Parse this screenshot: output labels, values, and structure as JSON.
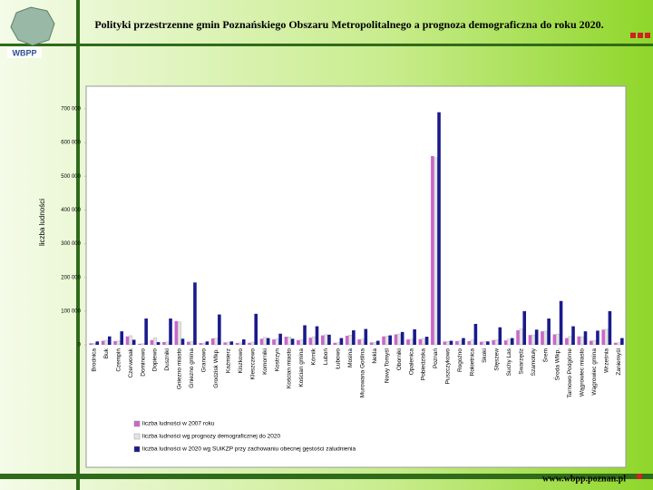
{
  "header": {
    "title": "Polityki przestrzenne gmin Poznańskiego Obszaru Metropolitalnego a prognoza demograficzna do roku 2020.",
    "logo": "WBPP"
  },
  "footer": "www.wbpp.poznan.pl",
  "chart_data": {
    "type": "bar",
    "y_label": "liczba ludności",
    "categories": [
      "Brodnica",
      "Buk",
      "Czempiń",
      "Czerwonak",
      "Dominowo",
      "Dopiewo",
      "Duszniki",
      "Gniezno miasto",
      "Gniezno gmina",
      "Granowo",
      "Grodzisk Wlkp.",
      "Kaźmierz",
      "Kiszkowo",
      "Kleszczewo",
      "Komorniki",
      "Kostrzyn",
      "Kościan miasto",
      "Kościan gmina",
      "Kórnik",
      "Luboń",
      "Łubowo",
      "Mosina",
      "Murowana Goślina",
      "Nekla",
      "Nowy Tomyśl",
      "Oborniki",
      "Opalenica",
      "Pobiedziska",
      "Poznań",
      "Puszczykowo",
      "Rogoźno",
      "Rokietnica",
      "Skoki",
      "Stęszew",
      "Suchy Las",
      "Swarzędz",
      "Szamotuły",
      "Śrem",
      "Środa Wlkp.",
      "Tarnowo Podgórne",
      "Wągrowiec miasto",
      "Wągrowiec gmina",
      "Września",
      "Zaniemyśl"
    ],
    "series": [
      {
        "name": "liczba ludności w 2007 roku",
        "color": "#cc66cc",
        "values": [
          4500,
          12000,
          11000,
          25000,
          3000,
          14000,
          8000,
          70000,
          9000,
          5000,
          19000,
          7000,
          5500,
          6000,
          18000,
          16000,
          24000,
          14000,
          21000,
          28000,
          6000,
          27000,
          16000,
          7000,
          25000,
          31000,
          16000,
          17000,
          560000,
          9500,
          11000,
          11000,
          9000,
          14000,
          13000,
          43000,
          29000,
          40000,
          31000,
          20000,
          25000,
          12000,
          45000,
          6000
        ]
      },
      {
        "name": "liczba ludności wg prognozy demograficznej do 2020",
        "color": "#e4e4e4",
        "values": [
          5000,
          13500,
          11500,
          27000,
          3200,
          21000,
          8500,
          68000,
          9500,
          5200,
          19500,
          8000,
          5800,
          8000,
          22000,
          17500,
          23500,
          15000,
          24000,
          30000,
          6200,
          29000,
          17000,
          7200,
          25500,
          32000,
          16500,
          19000,
          555000,
          10000,
          11500,
          14000,
          9500,
          15000,
          17000,
          47000,
          29500,
          40500,
          32000,
          25000,
          24000,
          12500,
          46000,
          6200
        ]
      },
      {
        "name": "liczba ludności w 2020 wg SUiKZP przy zachowaniu obecnej gęstości zaludnienia",
        "color": "#1a1a8c",
        "values": [
          10000,
          25000,
          40000,
          15000,
          78000,
          8000,
          78000,
          18000,
          185000,
          10000,
          90000,
          10000,
          16000,
          92000,
          20000,
          33000,
          18000,
          58000,
          55000,
          30000,
          20000,
          43000,
          47000,
          12000,
          28000,
          38000,
          46000,
          24000,
          690000,
          12000,
          20000,
          62000,
          10000,
          52000,
          20000,
          100000,
          45000,
          78000,
          130000,
          55000,
          40000,
          42000,
          100000,
          20000
        ]
      }
    ],
    "ylim": [
      0,
      700000
    ],
    "yticks": [
      {
        "value": 0,
        "label": "0"
      },
      {
        "value": 100000,
        "label": "100 000"
      },
      {
        "value": 200000,
        "label": "200 000"
      },
      {
        "value": 300000,
        "label": "300 000"
      },
      {
        "value": 400000,
        "label": "400 000"
      },
      {
        "value": 500000,
        "label": "500 000"
      },
      {
        "value": 600000,
        "label": "600 000"
      },
      {
        "value": 700000,
        "label": "700 000"
      }
    ],
    "grid": false
  }
}
